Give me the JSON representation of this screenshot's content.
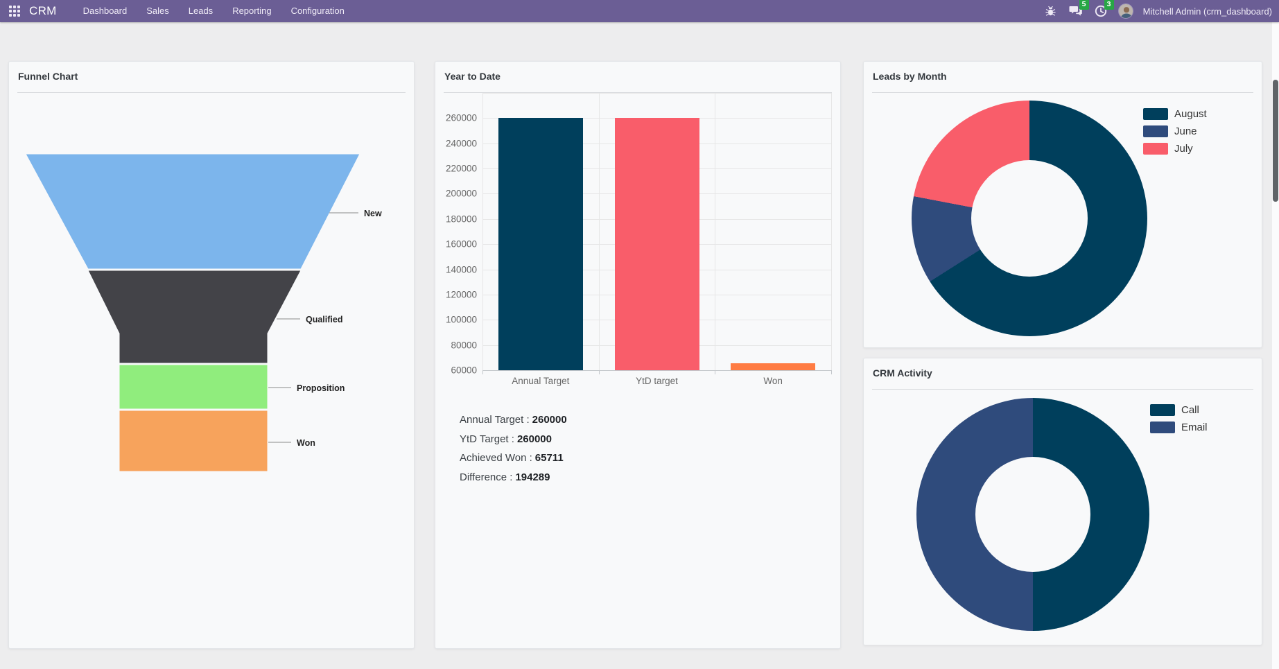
{
  "navbar": {
    "app_name": "CRM",
    "menu_items": [
      "Dashboard",
      "Sales",
      "Leads",
      "Reporting",
      "Configuration"
    ],
    "messages_badge": "5",
    "activities_badge": "3",
    "user_name": "Mitchell Admin (crm_dashboard)",
    "colors": {
      "background": "#6b5e95",
      "badge": "#28a745"
    }
  },
  "cards": {
    "funnel": {
      "title": "Funnel Chart"
    },
    "ytd": {
      "title": "Year to Date",
      "summary": [
        {
          "label": "Annual Target :",
          "value": "260000"
        },
        {
          "label": "YtD Target :",
          "value": "260000"
        },
        {
          "label": "Achieved Won :",
          "value": "65711"
        },
        {
          "label": "Difference :",
          "value": "194289"
        }
      ]
    },
    "leads_by_month": {
      "title": "Leads by Month"
    },
    "crm_activity": {
      "title": "CRM Activity"
    }
  },
  "chart_data": [
    {
      "id": "funnel",
      "type": "funnel",
      "title": "Funnel Chart",
      "stages": [
        {
          "label": "New",
          "color": "#7cb5ec"
        },
        {
          "label": "Qualified",
          "color": "#434348"
        },
        {
          "label": "Proposition",
          "color": "#90ed7d"
        },
        {
          "label": "Won",
          "color": "#f7a35c"
        }
      ]
    },
    {
      "id": "ytd",
      "type": "bar",
      "title": "Year to Date",
      "categories": [
        "Annual Target",
        "YtD target",
        "Won"
      ],
      "values": [
        260000,
        260000,
        65711
      ],
      "colors": [
        "#003f5c",
        "#f95d6a",
        "#ff7c43"
      ],
      "ylim": [
        60000,
        280000
      ],
      "yticks": [
        60000,
        80000,
        100000,
        120000,
        140000,
        160000,
        180000,
        200000,
        220000,
        240000,
        260000
      ],
      "grid": true,
      "legend": false
    },
    {
      "id": "leads_by_month",
      "type": "pie",
      "donut": true,
      "title": "Leads by Month",
      "legend_position": "right",
      "values_unit": "percent-estimated",
      "segments": [
        {
          "label": "August",
          "value": 66,
          "color": "#003f5c"
        },
        {
          "label": "June",
          "value": 12,
          "color": "#2f4b7c"
        },
        {
          "label": "July",
          "value": 22,
          "color": "#f95d6a"
        }
      ]
    },
    {
      "id": "crm_activity",
      "type": "pie",
      "donut": true,
      "title": "CRM Activity",
      "legend_position": "right",
      "values_unit": "percent-estimated",
      "segments": [
        {
          "label": "Call",
          "value": 50,
          "color": "#003f5c"
        },
        {
          "label": "Email",
          "value": 50,
          "color": "#2f4b7c"
        }
      ]
    }
  ]
}
